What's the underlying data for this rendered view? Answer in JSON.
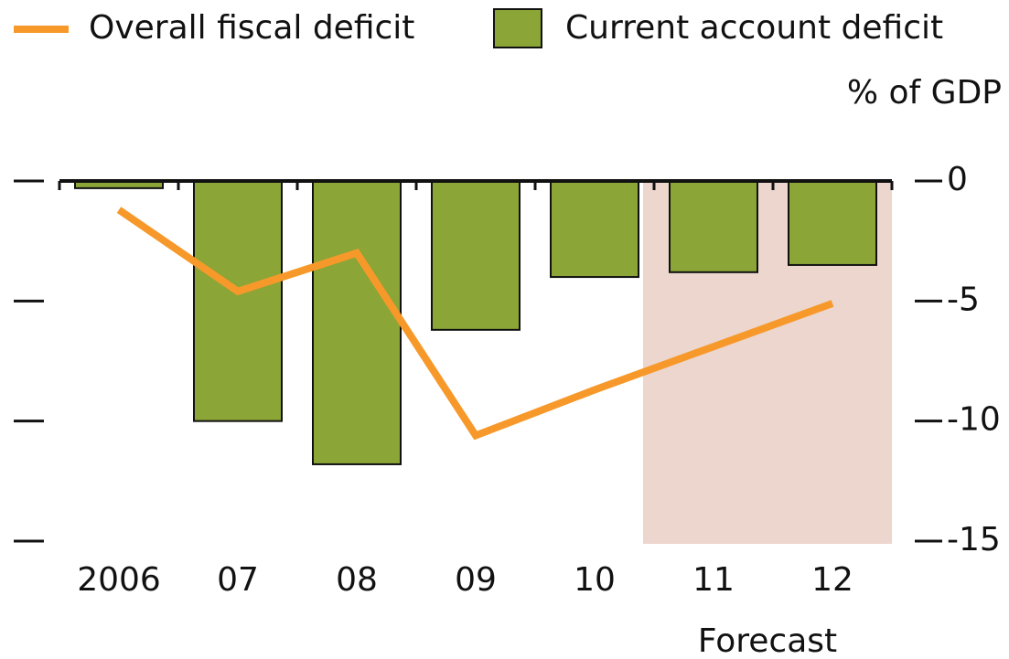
{
  "chart_data": {
    "type": "bar_line",
    "y_label": "% of GDP",
    "categories": [
      "2006",
      "07",
      "08",
      "09",
      "10",
      "11",
      "12"
    ],
    "series": [
      {
        "name": "Current account deficit",
        "type": "bar",
        "color": "#8ba536",
        "values": [
          -0.3,
          -10.0,
          -11.8,
          -6.2,
          -4.0,
          -3.8,
          -3.5
        ]
      },
      {
        "name": "Overall fiscal deficit",
        "type": "line",
        "color": "#f7992a",
        "values": [
          -1.2,
          -4.6,
          -3.0,
          -10.6,
          -8.7,
          -6.9,
          -5.1
        ]
      }
    ],
    "ylim": [
      -15,
      0
    ],
    "yticks": [
      0,
      -5,
      -10,
      -15
    ],
    "shade": {
      "start_index": 5,
      "label": "Forecast",
      "color": "#ecd6cd"
    }
  }
}
